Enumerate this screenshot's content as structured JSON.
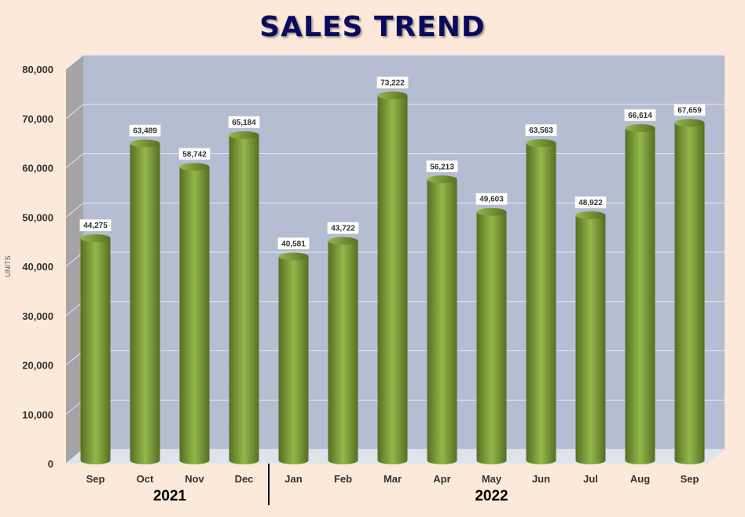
{
  "chart_data": {
    "type": "bar",
    "title": "SALES TREND",
    "ylabel": "UNITS",
    "xlabel": "",
    "ylim": [
      0,
      80000
    ],
    "yticks": [
      0,
      10000,
      20000,
      30000,
      40000,
      50000,
      60000,
      70000,
      80000
    ],
    "ytick_labels": [
      "0",
      "10,000",
      "20,000",
      "30,000",
      "40,000",
      "50,000",
      "60,000",
      "70,000",
      "80,000"
    ],
    "categories": [
      "Sep",
      "Oct",
      "Nov",
      "Dec",
      "Jan",
      "Feb",
      "Mar",
      "Apr",
      "May",
      "Jun",
      "Jul",
      "Aug",
      "Sep"
    ],
    "values": [
      44275,
      63489,
      58742,
      65184,
      40581,
      43722,
      73222,
      56213,
      49603,
      63563,
      48922,
      66614,
      67659
    ],
    "data_labels": [
      "44,275",
      "63,489",
      "58,742",
      "65,184",
      "40,581",
      "43,722",
      "73,222",
      "56,213",
      "49,603",
      "63,563",
      "48,922",
      "66,614",
      "67,659"
    ],
    "groups": [
      {
        "label": "2021",
        "count": 4
      },
      {
        "label": "2022",
        "count": 9
      }
    ],
    "grid": true,
    "legend": "none"
  },
  "colors": {
    "background": "#fde9d9",
    "plot_wall": "#b4bdd1",
    "side_wall": "#a4a4a4",
    "floor": "#dfe3ea",
    "bar_light": "#92b84a",
    "bar_dark": "#566f22",
    "title": "#0b0b5e"
  }
}
